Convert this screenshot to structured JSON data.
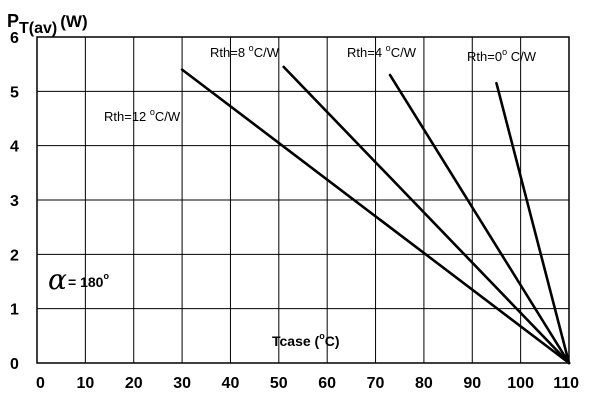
{
  "chart_data": {
    "type": "line",
    "ylabel": {
      "main": "P",
      "sub": "T(av)",
      "unit": "(W)"
    },
    "xlabel": {
      "prefix": "Tcase (",
      "deg": "o",
      "suffix": "C)"
    },
    "xlim": [
      0,
      110
    ],
    "ylim": [
      0,
      6
    ],
    "x_ticks": [
      0,
      10,
      20,
      30,
      40,
      50,
      60,
      70,
      80,
      90,
      100,
      110
    ],
    "y_ticks": [
      0,
      1,
      2,
      3,
      4,
      5,
      6
    ],
    "grid": true,
    "conduction_angle": {
      "value": "180",
      "deg": "o"
    },
    "series": [
      {
        "name": "Rth=12 °C/W",
        "label": {
          "pre": "Rth=12 ",
          "deg": "o",
          "post": "C/W"
        },
        "points": [
          [
            30,
            5.4
          ],
          [
            110,
            0
          ]
        ]
      },
      {
        "name": "Rth=8 °C/W",
        "label": {
          "pre": "Rth=8 ",
          "deg": "o",
          "post": "C/W"
        },
        "points": [
          [
            51,
            5.45
          ],
          [
            110,
            0
          ]
        ]
      },
      {
        "name": "Rth=4 °C/W",
        "label": {
          "pre": "Rth=4 ",
          "deg": "o",
          "post": "C/W"
        },
        "points": [
          [
            73,
            5.3
          ],
          [
            110,
            0
          ]
        ]
      },
      {
        "name": "Rth=0° C/W",
        "label": {
          "pre": "Rth=0",
          "deg": "o",
          "post": " C/W"
        },
        "points": [
          [
            95,
            5.15
          ],
          [
            110,
            0
          ]
        ]
      }
    ]
  }
}
